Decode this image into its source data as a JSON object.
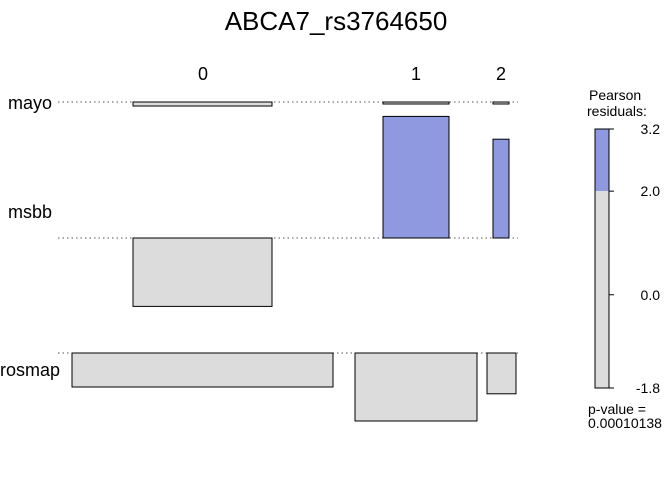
{
  "chart_data": {
    "type": "association",
    "title": "ABCA7_rs3764650",
    "columns": [
      "0",
      "1",
      "2"
    ],
    "rows": [
      "mayo",
      "msbb",
      "rosmap"
    ],
    "residuals": [
      [
        -0.6,
        -0.1,
        -0.2
      ],
      [
        -1.8,
        3.2,
        2.6
      ],
      [
        -0.5,
        -1.0,
        -0.6
      ]
    ],
    "legend": {
      "title_line1": "Pearson",
      "title_line2": "residuals:",
      "ticks": [
        "3.2",
        "2.0",
        "0.0",
        "-1.8"
      ],
      "range": [
        -1.8,
        3.2
      ],
      "shade_threshold": 2.0
    },
    "pvalue_label": "p-value =",
    "pvalue_value": "0.00010138",
    "colors": {
      "positive_fill": "#8e99e0",
      "neutral_fill": "#dcdcdc",
      "border": "#000000"
    }
  }
}
